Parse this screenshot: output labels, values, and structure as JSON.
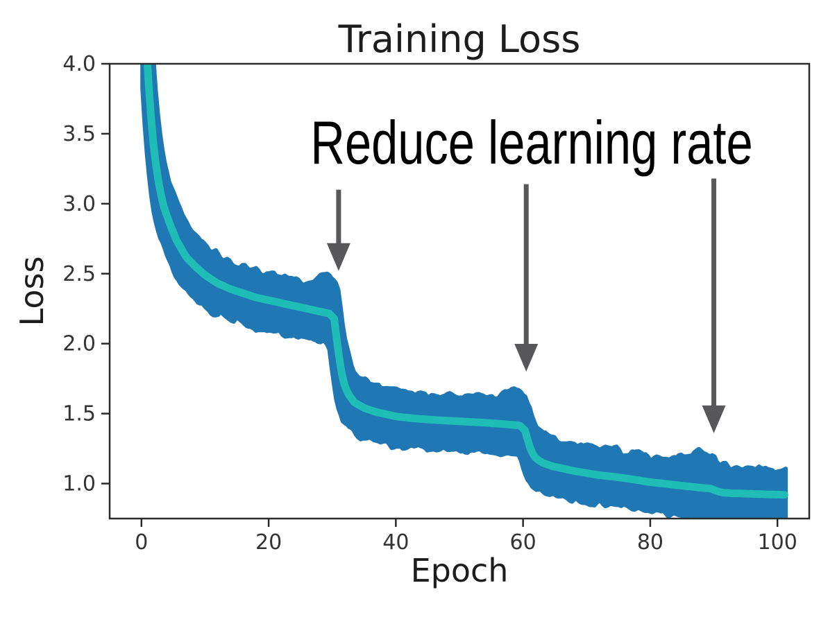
{
  "chart_data": {
    "type": "line",
    "title": "Training Loss",
    "xlabel": "Epoch",
    "ylabel": "Loss",
    "xlim": [
      -5,
      105
    ],
    "ylim": [
      0.75,
      4.0
    ],
    "xticks": [
      0,
      20,
      40,
      60,
      80,
      100
    ],
    "yticks": [
      1.0,
      1.5,
      2.0,
      2.5,
      3.0,
      3.5,
      4.0
    ],
    "grid": false,
    "legend": "none",
    "axis_color": "#2b2b2b",
    "tick_label_color": "#333333",
    "series": [
      {
        "name": "raw_loss_band",
        "type": "noisy_band",
        "color": "#1f77b4",
        "half_width_up": 0.15,
        "half_width_down": 0.17,
        "noise_amplitude": 0.055,
        "epoch_range": [
          0.15,
          101.3
        ],
        "upper_bumps": [
          {
            "epoch": 29.0,
            "amp": 0.1,
            "sigma": 1.1
          },
          {
            "epoch": 58.5,
            "amp": 0.06,
            "sigma": 1.2
          },
          {
            "epoch": 88.0,
            "amp": 0.07,
            "sigma": 1.6
          }
        ],
        "lower_bumps": [
          {
            "epoch": 97.0,
            "amp": 0.05,
            "sigma": 4.0
          }
        ]
      },
      {
        "name": "smoothed_loss",
        "type": "line",
        "color": "#1fbdb5",
        "stroke_width": 11,
        "points": [
          [
            0.3,
            4.55
          ],
          [
            0.8,
            4.1
          ],
          [
            1.2,
            3.8
          ],
          [
            1.7,
            3.5
          ],
          [
            2.2,
            3.3
          ],
          [
            2.8,
            3.12
          ],
          [
            3.5,
            2.98
          ],
          [
            4.5,
            2.85
          ],
          [
            5.5,
            2.74
          ],
          [
            7,
            2.62
          ],
          [
            8.5,
            2.55
          ],
          [
            10,
            2.49
          ],
          [
            12,
            2.43
          ],
          [
            14,
            2.39
          ],
          [
            16,
            2.36
          ],
          [
            18,
            2.33
          ],
          [
            20,
            2.31
          ],
          [
            22,
            2.29
          ],
          [
            24,
            2.27
          ],
          [
            26,
            2.25
          ],
          [
            28,
            2.23
          ],
          [
            29.5,
            2.215
          ],
          [
            30.3,
            2.18
          ],
          [
            30.8,
            2.0
          ],
          [
            31.3,
            1.83
          ],
          [
            31.8,
            1.72
          ],
          [
            32.5,
            1.64
          ],
          [
            33.5,
            1.58
          ],
          [
            35,
            1.54
          ],
          [
            37,
            1.51
          ],
          [
            40,
            1.48
          ],
          [
            43,
            1.465
          ],
          [
            46,
            1.455
          ],
          [
            50,
            1.445
          ],
          [
            54,
            1.435
          ],
          [
            57,
            1.425
          ],
          [
            59.5,
            1.415
          ],
          [
            60.3,
            1.38
          ],
          [
            60.8,
            1.3
          ],
          [
            61.3,
            1.23
          ],
          [
            62,
            1.18
          ],
          [
            63,
            1.15
          ],
          [
            64.5,
            1.125
          ],
          [
            66,
            1.11
          ],
          [
            68,
            1.09
          ],
          [
            70,
            1.075
          ],
          [
            72,
            1.06
          ],
          [
            75,
            1.045
          ],
          [
            78,
            1.025
          ],
          [
            80,
            1.01
          ],
          [
            82,
            1.0
          ],
          [
            84,
            0.99
          ],
          [
            86,
            0.98
          ],
          [
            88,
            0.97
          ],
          [
            89.5,
            0.965
          ],
          [
            90.5,
            0.945
          ],
          [
            91.5,
            0.935
          ],
          [
            93,
            0.93
          ],
          [
            95,
            0.928
          ],
          [
            97,
            0.925
          ],
          [
            99,
            0.922
          ],
          [
            101,
            0.92
          ]
        ]
      }
    ],
    "annotation": {
      "text": "Reduce learning rate",
      "color": "#000000",
      "epoch": 61,
      "loss": 3.4
    },
    "arrows": {
      "color": "#58585a",
      "shaft_width": 7,
      "items": [
        {
          "epoch": 31.0,
          "from_loss": 3.1,
          "to_loss": 2.52
        },
        {
          "epoch": 60.5,
          "from_loss": 3.14,
          "to_loss": 1.8
        },
        {
          "epoch": 90.0,
          "from_loss": 3.18,
          "to_loss": 1.36
        }
      ]
    }
  }
}
